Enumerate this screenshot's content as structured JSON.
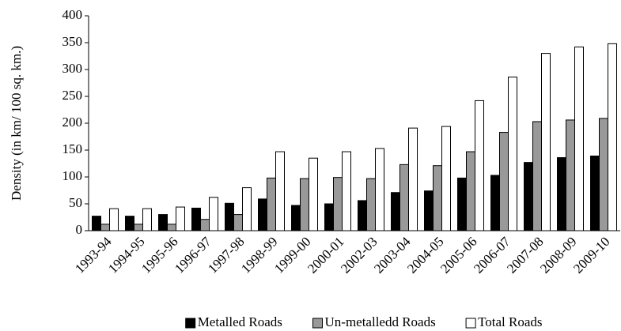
{
  "chart_data": {
    "type": "bar",
    "y_label": "Density (in km/ 100 sq. km.)",
    "categories": [
      "1993-94",
      "1994-95",
      "1995-96",
      "1996-97",
      "1997-98",
      "1998-99",
      "1999-00",
      "2000-01",
      "2002-03",
      "2003-04",
      "2004-05",
      "2005-06",
      "2006-07",
      "2007-08",
      "2008-09",
      "2009-10"
    ],
    "series": [
      {
        "name": "Metalled Roads",
        "color": "#000000",
        "values": [
          27,
          27,
          30,
          42,
          51,
          59,
          47,
          50,
          56,
          71,
          74,
          98,
          103,
          127,
          136,
          139
        ]
      },
      {
        "name": "Un-metalledd Roads",
        "color": "#999999",
        "values": [
          12,
          12,
          12,
          21,
          30,
          98,
          97,
          99,
          97,
          123,
          121,
          147,
          183,
          203,
          206,
          209
        ]
      },
      {
        "name": "Total Roads",
        "color": "#ffffff",
        "values": [
          41,
          41,
          44,
          62,
          80,
          147,
          135,
          147,
          153,
          191,
          194,
          242,
          286,
          330,
          342,
          348
        ]
      }
    ],
    "ylim": [
      0,
      400
    ],
    "yticks": [
      0,
      50,
      100,
      150,
      200,
      250,
      300,
      350,
      400
    ],
    "grid": false,
    "legend": "bottom"
  }
}
